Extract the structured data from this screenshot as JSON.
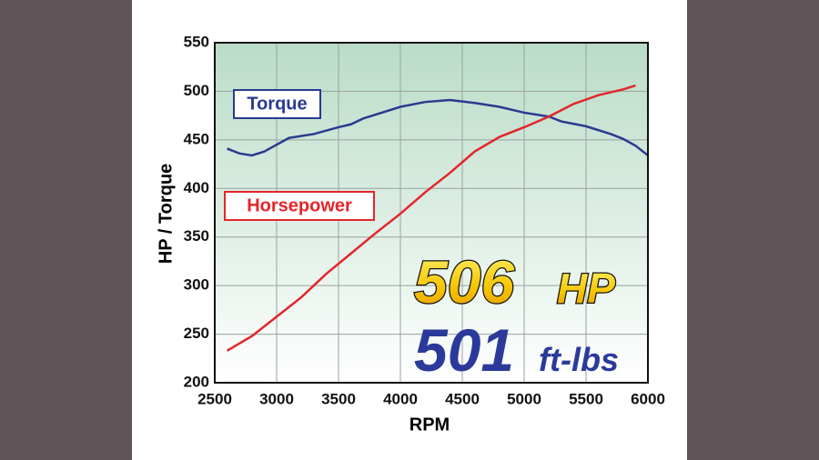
{
  "chart_data": {
    "type": "line",
    "x_label": "RPM",
    "y_label": "HP / Torque",
    "xlim": [
      2500,
      6000
    ],
    "xticks": [
      2500,
      3000,
      3500,
      4000,
      4500,
      5000,
      5500,
      6000
    ],
    "ylim": [
      200,
      550
    ],
    "yticks": [
      200,
      250,
      300,
      350,
      400,
      450,
      500,
      550
    ],
    "grid": true,
    "series": [
      {
        "name": "Torque",
        "color": "#2b3a8f",
        "x": [
          2600,
          2700,
          2800,
          2900,
          3000,
          3100,
          3300,
          3500,
          3600,
          3700,
          4000,
          4200,
          4400,
          4600,
          4800,
          5000,
          5200,
          5300,
          5500,
          5700,
          5800,
          5900,
          6000
        ],
        "values": [
          441,
          436,
          434,
          438,
          445,
          452,
          456,
          463,
          466,
          472,
          484,
          489,
          491,
          488,
          484,
          478,
          474,
          469,
          464,
          456,
          451,
          444,
          434
        ]
      },
      {
        "name": "Horsepower",
        "color": "#e3262b",
        "x": [
          2600,
          2800,
          3000,
          3200,
          3400,
          3600,
          3800,
          4000,
          4200,
          4400,
          4600,
          4800,
          5000,
          5200,
          5400,
          5600,
          5800,
          5900
        ],
        "values": [
          233,
          248,
          268,
          288,
          312,
          333,
          354,
          374,
          396,
          416,
          438,
          453,
          463,
          474,
          487,
          496,
          502,
          506
        ]
      }
    ],
    "callouts": [
      {
        "number": "506",
        "unit": "HP"
      },
      {
        "number": "501",
        "unit": "ft-lbs"
      }
    ]
  }
}
